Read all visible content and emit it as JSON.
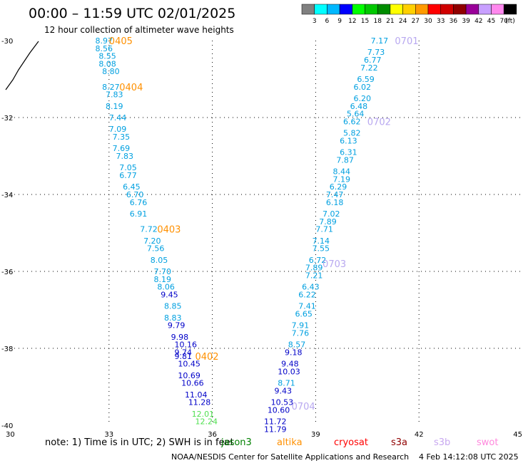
{
  "header": {
    "title": "00:00 – 11:59 UTC 02/01/2025",
    "subtitle": "12 hour collection of altimeter wave heights"
  },
  "legend": {
    "unit": "(ft)",
    "bins": [
      {
        "label": "3",
        "color": "#808080"
      },
      {
        "label": "6",
        "color": "#00ffff"
      },
      {
        "label": "9",
        "color": "#00b8ff"
      },
      {
        "label": "12",
        "color": "#0000ff"
      },
      {
        "label": "15",
        "color": "#00ff00"
      },
      {
        "label": "18",
        "color": "#00c800"
      },
      {
        "label": "21",
        "color": "#008c00"
      },
      {
        "label": "24",
        "color": "#ffff00"
      },
      {
        "label": "27",
        "color": "#ffd000"
      },
      {
        "label": "30",
        "color": "#ff9a00"
      },
      {
        "label": "33",
        "color": "#ff0000"
      },
      {
        "label": "36",
        "color": "#d00000"
      },
      {
        "label": "39",
        "color": "#900000"
      },
      {
        "label": "42",
        "color": "#990099"
      },
      {
        "label": "45",
        "color": "#c8a0ff"
      },
      {
        "label": "70",
        "color": "#ff88ee"
      },
      {
        "label": "",
        "color": "#000000"
      }
    ]
  },
  "axes": {
    "x_ticks": [
      "30",
      "33",
      "36",
      "39",
      "42",
      "45"
    ],
    "y_ticks": [
      "-30",
      "-32",
      "-34",
      "-36",
      "-38",
      "-40"
    ],
    "x_range": [
      30,
      45
    ],
    "y_range": [
      -40,
      -30
    ]
  },
  "colors": {
    "cyan_text": "#00a0e0",
    "blue_text": "#0000c8",
    "green_text": "#50e050",
    "orange_label": "#ff9000",
    "lavender_label": "#b8a8f0",
    "coast": "#000000",
    "grid": "#000000"
  },
  "chart_data": {
    "type": "scatter",
    "tracks": [
      {
        "labels": [
          {
            "text": "0405",
            "lon": 33.0,
            "lat": -30.0
          },
          {
            "text": "0404",
            "lon": 33.3,
            "lat": -31.2
          },
          {
            "text": "0403",
            "lon": 34.4,
            "lat": -34.9
          },
          {
            "text": "0402",
            "lon": 35.5,
            "lat": -38.2
          }
        ],
        "points": [
          {
            "value": "8.97",
            "lon": 32.6,
            "lat": -30.0
          },
          {
            "value": "8.56",
            "lon": 32.6,
            "lat": -30.2
          },
          {
            "value": "8.55",
            "lon": 32.7,
            "lat": -30.4
          },
          {
            "value": "8.08",
            "lon": 32.7,
            "lat": -30.6
          },
          {
            "value": "8.80",
            "lon": 32.8,
            "lat": -30.8
          },
          {
            "value": "8.27",
            "lon": 32.8,
            "lat": -31.2
          },
          {
            "value": "7.83",
            "lon": 32.9,
            "lat": -31.4
          },
          {
            "value": "8.19",
            "lon": 32.9,
            "lat": -31.7
          },
          {
            "value": "7.44",
            "lon": 33.0,
            "lat": -32.0
          },
          {
            "value": "7.09",
            "lon": 33.0,
            "lat": -32.3
          },
          {
            "value": "7.35",
            "lon": 33.1,
            "lat": -32.5
          },
          {
            "value": "7.69",
            "lon": 33.1,
            "lat": -32.8
          },
          {
            "value": "7.83",
            "lon": 33.2,
            "lat": -33.0
          },
          {
            "value": "7.05",
            "lon": 33.3,
            "lat": -33.3
          },
          {
            "value": "6.77",
            "lon": 33.3,
            "lat": -33.5
          },
          {
            "value": "6.45",
            "lon": 33.4,
            "lat": -33.8
          },
          {
            "value": "6.70",
            "lon": 33.5,
            "lat": -34.0
          },
          {
            "value": "6.76",
            "lon": 33.6,
            "lat": -34.2
          },
          {
            "value": "6.91",
            "lon": 33.6,
            "lat": -34.5
          },
          {
            "value": "7.72",
            "lon": 33.9,
            "lat": -34.9
          },
          {
            "value": "7.20",
            "lon": 34.0,
            "lat": -35.2
          },
          {
            "value": "7.56",
            "lon": 34.1,
            "lat": -35.4
          },
          {
            "value": "8.05",
            "lon": 34.2,
            "lat": -35.7
          },
          {
            "value": "7.70",
            "lon": 34.3,
            "lat": -36.0
          },
          {
            "value": "8.19",
            "lon": 34.3,
            "lat": -36.2
          },
          {
            "value": "8.06",
            "lon": 34.4,
            "lat": -36.4
          },
          {
            "value": "9.45",
            "lon": 34.5,
            "lat": -36.6
          },
          {
            "value": "8.85",
            "lon": 34.6,
            "lat": -36.9
          },
          {
            "value": "8.83",
            "lon": 34.6,
            "lat": -37.2
          },
          {
            "value": "9.79",
            "lon": 34.7,
            "lat": -37.4
          },
          {
            "value": "9.98",
            "lon": 34.8,
            "lat": -37.7
          },
          {
            "value": "10.16",
            "lon": 34.9,
            "lat": -37.9
          },
          {
            "value": "9.74",
            "lon": 34.9,
            "lat": -38.1
          },
          {
            "value": "9.81",
            "lon": 34.9,
            "lat": -38.2
          },
          {
            "value": "10.45",
            "lon": 35.0,
            "lat": -38.4
          },
          {
            "value": "10.69",
            "lon": 35.0,
            "lat": -38.7
          },
          {
            "value": "10.66",
            "lon": 35.1,
            "lat": -38.9
          },
          {
            "value": "11.04",
            "lon": 35.2,
            "lat": -39.2
          },
          {
            "value": "11.28",
            "lon": 35.3,
            "lat": -39.4
          },
          {
            "value": "12.01",
            "lon": 35.4,
            "lat": -39.7
          },
          {
            "value": "12.24",
            "lon": 35.5,
            "lat": -39.9
          }
        ]
      },
      {
        "labels": [
          {
            "text": "0701",
            "lon": 41.3,
            "lat": -30.0
          },
          {
            "text": "0702",
            "lon": 40.5,
            "lat": -32.1
          },
          {
            "text": "0703",
            "lon": 39.2,
            "lat": -35.8
          },
          {
            "text": "0704",
            "lon": 38.3,
            "lat": -39.5
          }
        ],
        "points": [
          {
            "value": "7.17",
            "lon": 40.6,
            "lat": -30.0
          },
          {
            "value": "7.73",
            "lon": 40.5,
            "lat": -30.3
          },
          {
            "value": "6.77",
            "lon": 40.4,
            "lat": -30.5
          },
          {
            "value": "7.22",
            "lon": 40.3,
            "lat": -30.7
          },
          {
            "value": "6.59",
            "lon": 40.2,
            "lat": -31.0
          },
          {
            "value": "6.02",
            "lon": 40.1,
            "lat": -31.2
          },
          {
            "value": "6.20",
            "lon": 40.1,
            "lat": -31.5
          },
          {
            "value": "6.48",
            "lon": 40.0,
            "lat": -31.7
          },
          {
            "value": "5.64",
            "lon": 39.9,
            "lat": -31.9
          },
          {
            "value": "6.62",
            "lon": 39.8,
            "lat": -32.1
          },
          {
            "value": "5.82",
            "lon": 39.8,
            "lat": -32.4
          },
          {
            "value": "6.13",
            "lon": 39.7,
            "lat": -32.6
          },
          {
            "value": "6.31",
            "lon": 39.7,
            "lat": -32.9
          },
          {
            "value": "7.87",
            "lon": 39.6,
            "lat": -33.1
          },
          {
            "value": "8.44",
            "lon": 39.5,
            "lat": -33.4
          },
          {
            "value": "7.19",
            "lon": 39.5,
            "lat": -33.6
          },
          {
            "value": "6.29",
            "lon": 39.4,
            "lat": -33.8
          },
          {
            "value": "7.47",
            "lon": 39.3,
            "lat": -34.0
          },
          {
            "value": "6.18",
            "lon": 39.3,
            "lat": -34.2
          },
          {
            "value": "7.02",
            "lon": 39.2,
            "lat": -34.5
          },
          {
            "value": "7.89",
            "lon": 39.1,
            "lat": -34.7
          },
          {
            "value": "7.71",
            "lon": 39.0,
            "lat": -34.9
          },
          {
            "value": "7.14",
            "lon": 38.9,
            "lat": -35.2
          },
          {
            "value": "7.55",
            "lon": 38.9,
            "lat": -35.4
          },
          {
            "value": "6.72",
            "lon": 38.8,
            "lat": -35.7
          },
          {
            "value": "7.89",
            "lon": 38.7,
            "lat": -35.9
          },
          {
            "value": "7.21",
            "lon": 38.7,
            "lat": -36.1
          },
          {
            "value": "6.43",
            "lon": 38.6,
            "lat": -36.4
          },
          {
            "value": "6.22",
            "lon": 38.5,
            "lat": -36.6
          },
          {
            "value": "7.41",
            "lon": 38.5,
            "lat": -36.9
          },
          {
            "value": "6.65",
            "lon": 38.4,
            "lat": -37.1
          },
          {
            "value": "7.91",
            "lon": 38.3,
            "lat": -37.4
          },
          {
            "value": "7.76",
            "lon": 38.3,
            "lat": -37.6
          },
          {
            "value": "8.57",
            "lon": 38.2,
            "lat": -37.9
          },
          {
            "value": "9.18",
            "lon": 38.1,
            "lat": -38.1
          },
          {
            "value": "9.48",
            "lon": 38.0,
            "lat": -38.4
          },
          {
            "value": "10.03",
            "lon": 37.9,
            "lat": -38.6
          },
          {
            "value": "8.71",
            "lon": 37.9,
            "lat": -38.9
          },
          {
            "value": "9.43",
            "lon": 37.8,
            "lat": -39.1
          },
          {
            "value": "10.53",
            "lon": 37.7,
            "lat": -39.4
          },
          {
            "value": "10.60",
            "lon": 37.6,
            "lat": -39.6
          },
          {
            "value": "11.72",
            "lon": 37.5,
            "lat": -39.9
          },
          {
            "value": "11.79",
            "lon": 37.5,
            "lat": -40.1
          }
        ]
      }
    ]
  },
  "footer": {
    "note": "note: 1) Time is in UTC; 2) SWH is in feet",
    "satellites": [
      {
        "name": "jason3",
        "color": "#008000"
      },
      {
        "name": "altika",
        "color": "#ff9000"
      },
      {
        "name": "cryosat",
        "color": "#ff0000"
      },
      {
        "name": "s3a",
        "color": "#900000"
      },
      {
        "name": "s3b",
        "color": "#c8a8f0"
      },
      {
        "name": "swot",
        "color": "#ff88dd"
      }
    ],
    "credit": "NOAA/NESDIS Center for Satellite Applications and Research",
    "timestamp": "4 Feb 14:12:08 UTC 2025"
  }
}
